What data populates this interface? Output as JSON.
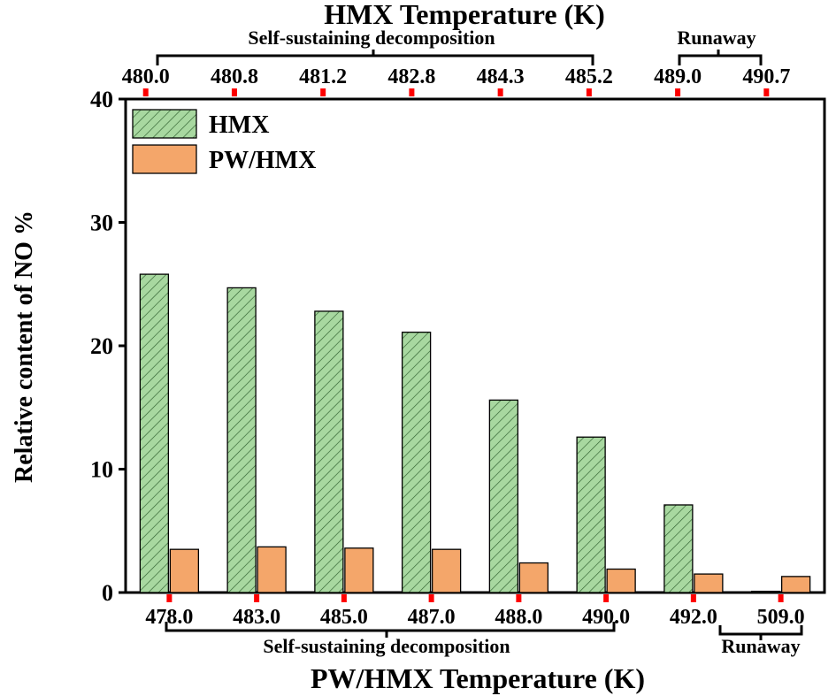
{
  "chart_data": {
    "type": "bar",
    "title": "",
    "top_axis_title": "HMX Temperature (K)",
    "bottom_axis_title": "PW/HMX Temperature (K)",
    "ylabel": "Relative content of NO %",
    "ylim": [
      0,
      40
    ],
    "yticks": [
      "0",
      "10",
      "20",
      "30",
      "40"
    ],
    "categories": [
      "478.0",
      "483.0",
      "485.0",
      "487.0",
      "488.0",
      "490.0",
      "492.0",
      "509.0"
    ],
    "top_categories": [
      "480.0",
      "480.8",
      "481.2",
      "482.8",
      "484.3",
      "485.2",
      "489.0",
      "490.7"
    ],
    "series": [
      {
        "name": "HMX",
        "values": [
          25.8,
          24.7,
          22.8,
          21.1,
          15.6,
          12.6,
          7.1,
          0.1
        ]
      },
      {
        "name": "PW/HMX",
        "values": [
          3.5,
          3.7,
          3.6,
          3.5,
          2.4,
          1.9,
          1.5,
          1.3
        ]
      }
    ],
    "legend": {
      "placement": "top-left"
    },
    "grid": false,
    "annotations": {
      "top_self": "Self-sustaining decomposition",
      "top_runaway": "Runaway",
      "bottom_self": "Self-sustaining decomposition",
      "bottom_runaway": "Runaway"
    },
    "colors": {
      "hmx_fill": "#a8d8a0",
      "hmx_hatch": "#2f5f2f",
      "pw_fill": "#f4a66a",
      "tick_marker": "#ff0000"
    }
  }
}
